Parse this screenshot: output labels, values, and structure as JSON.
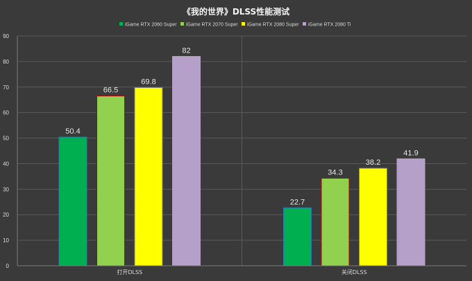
{
  "chart_data": {
    "type": "bar",
    "title": "《我的世界》DLSS性能测试",
    "categories": [
      "打开DLSS",
      "关闭DLSS"
    ],
    "series": [
      {
        "name": "iGame RTX 2060 Super",
        "values": [
          50.4,
          22.7
        ],
        "color": "#00b050",
        "border": "#2e75b6"
      },
      {
        "name": "iGame RTX 2070 Super",
        "values": [
          66.5,
          34.3
        ],
        "color": "#92d050",
        "border": "#c00000"
      },
      {
        "name": "iGame RTX 2080 Super",
        "values": [
          69.8,
          38.2
        ],
        "color": "#ffff00",
        "border": "#7f7f7f"
      },
      {
        "name": "iGame RTX 2080 Ti",
        "values": [
          82,
          41.9
        ],
        "color": "#b4a0c8",
        "border": "#b4a0c8"
      }
    ],
    "yticks": [
      0,
      10,
      20,
      30,
      40,
      50,
      60,
      70,
      80,
      90
    ],
    "ylim": [
      0,
      90
    ],
    "xlabel": "",
    "ylabel": "",
    "grid": true,
    "legend": "top"
  }
}
